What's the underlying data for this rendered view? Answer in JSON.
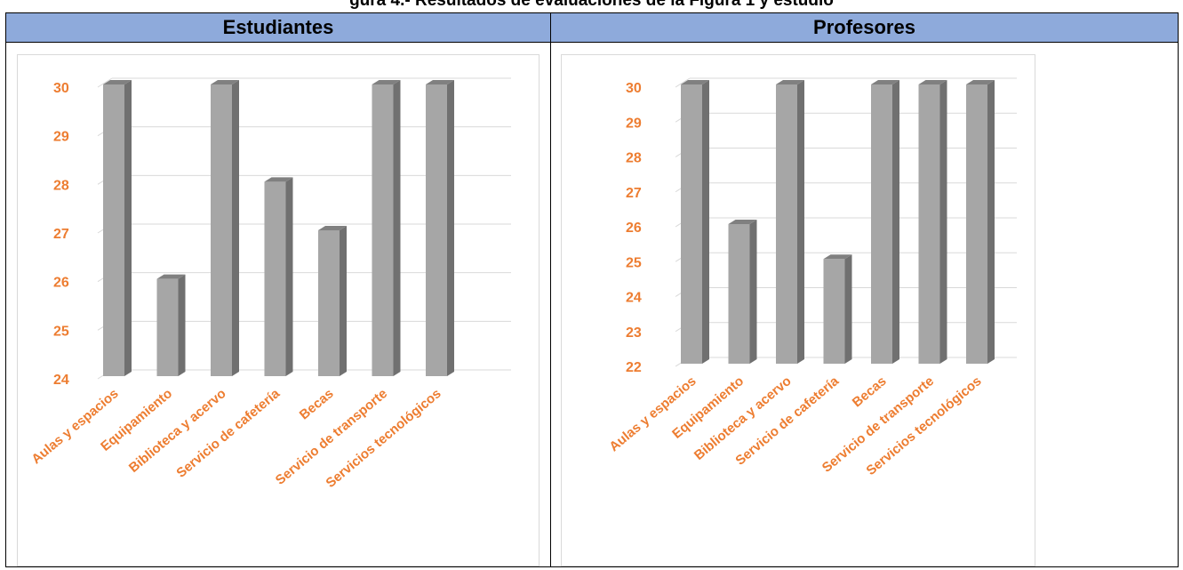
{
  "page": {
    "title": "gura 4.- Resultados de evaluaciones de la Figura 1 y estudio"
  },
  "columns": {
    "left": "Estudiantes",
    "right": "Profesores"
  },
  "colors": {
    "header_bg": "#8eaadb",
    "bar_front": "#a6a6a6",
    "bar_side": "#707070",
    "bar_top": "#808080",
    "label": "#ed7d31",
    "grid": "#d9d9d9"
  },
  "chart_data": [
    {
      "type": "bar",
      "title": "",
      "categories": [
        "Aulas y espacios",
        "Equipamiento",
        "Biblioteca y acervo",
        "Servicio de cafetería",
        "Becas",
        "Servicio de transporte",
        "Servicios tecnológicos"
      ],
      "values": [
        30,
        26,
        30,
        28,
        27,
        30,
        30
      ],
      "ylim": [
        24,
        30
      ],
      "yticks": [
        "24",
        "25",
        "26",
        "27",
        "28",
        "29",
        "30"
      ],
      "grid": true,
      "style": "3d-column"
    },
    {
      "type": "bar",
      "title": "",
      "categories": [
        "Aulas y espacios",
        "Equipamiento",
        "Biblioteca y acervo",
        "Servicio de cafetería",
        "Becas",
        "Servicio de transporte",
        "Servicios tecnológicos"
      ],
      "values": [
        30,
        26,
        30,
        25,
        30,
        30,
        30
      ],
      "ylim": [
        22,
        30
      ],
      "yticks": [
        "22",
        "23",
        "24",
        "25",
        "26",
        "27",
        "28",
        "29",
        "30"
      ],
      "grid": true,
      "style": "3d-column"
    }
  ]
}
